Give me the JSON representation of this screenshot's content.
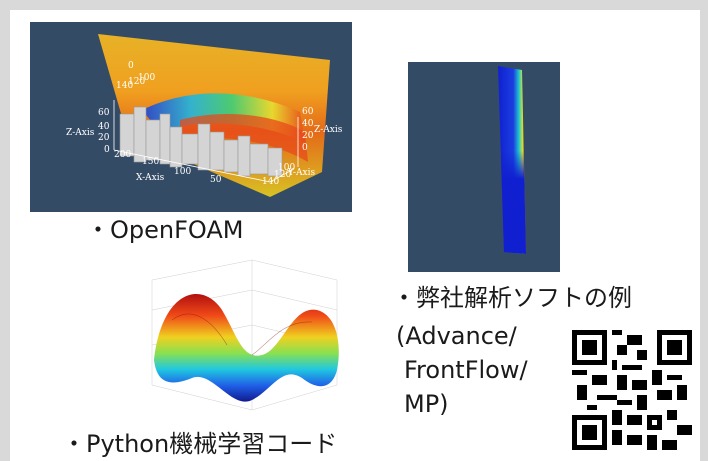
{
  "captions": {
    "openfoam": "・OpenFOAM",
    "inhouse_title": "・弊社解析ソフトの例",
    "inhouse_line1": "(Advance/",
    "inhouse_line2": "FrontFlow/",
    "inhouse_line3": "MP)",
    "python": "・Python機械学習コード"
  },
  "openfoam_plot": {
    "axis_labels": {
      "x": "X-Axis",
      "y": "Y-Axis",
      "z_left": "Z-Axis",
      "z_right": "Z-Axis"
    },
    "z_ticks_left": [
      "60",
      "40",
      "20",
      "0"
    ],
    "z_ticks_right": [
      "60",
      "40",
      "20",
      "0"
    ],
    "x_ticks": [
      "200",
      "150",
      "100",
      "50"
    ],
    "y_ticks": [
      "100",
      "120",
      "140"
    ],
    "top_ticks": [
      "140",
      "120",
      "100"
    ],
    "top_zero": "0"
  },
  "colors": {
    "panel_bg": "#344b66",
    "caption_text": "#1a1a1a",
    "border": "#d9d9d9"
  }
}
